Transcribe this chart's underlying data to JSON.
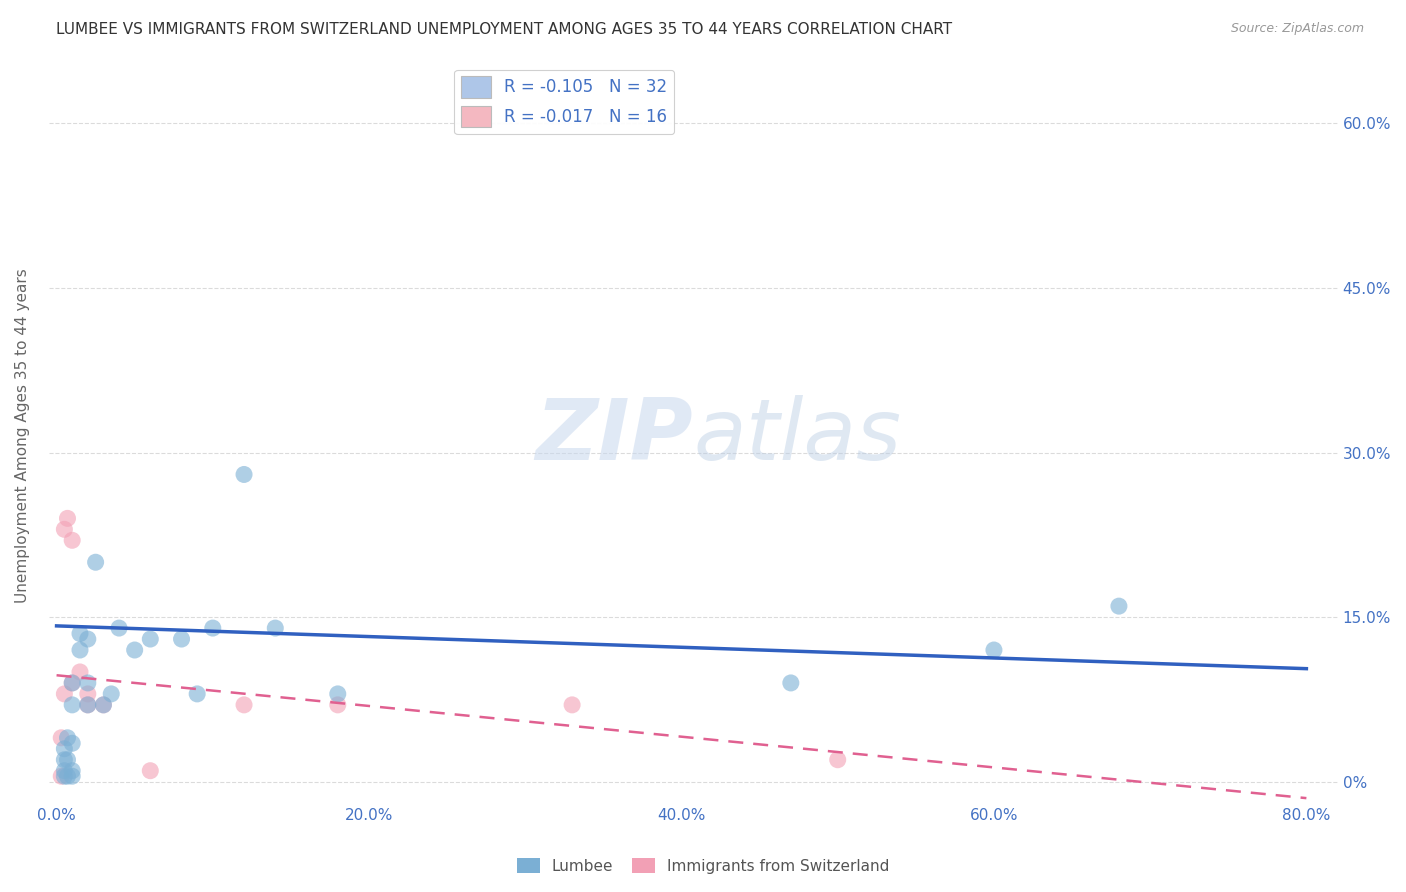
{
  "title": "LUMBEE VS IMMIGRANTS FROM SWITZERLAND UNEMPLOYMENT AMONG AGES 35 TO 44 YEARS CORRELATION CHART",
  "source": "Source: ZipAtlas.com",
  "ylabel": "Unemployment Among Ages 35 to 44 years",
  "x_tick_labels": [
    "0.0%",
    "20.0%",
    "40.0%",
    "60.0%",
    "80.0%"
  ],
  "x_tick_values": [
    0.0,
    0.2,
    0.4,
    0.6,
    0.8
  ],
  "y_tick_labels_right": [
    "0%",
    "15.0%",
    "30.0%",
    "45.0%",
    "60.0%"
  ],
  "y_tick_values": [
    0.0,
    0.15,
    0.3,
    0.45,
    0.6
  ],
  "xlim": [
    -0.005,
    0.82
  ],
  "ylim": [
    -0.02,
    0.65
  ],
  "legend1_color": "#aec6e8",
  "legend2_color": "#f4b8c1",
  "watermark_zip": "ZIP",
  "watermark_atlas": "atlas",
  "lumbee_color": "#7bafd4",
  "swiss_color": "#f2a0b5",
  "lumbee_trend_color": "#3060c0",
  "swiss_trend_color": "#e06090",
  "lumbee_x": [
    0.005,
    0.005,
    0.005,
    0.005,
    0.007,
    0.007,
    0.007,
    0.01,
    0.01,
    0.01,
    0.01,
    0.01,
    0.015,
    0.015,
    0.02,
    0.02,
    0.02,
    0.025,
    0.03,
    0.035,
    0.04,
    0.05,
    0.06,
    0.08,
    0.09,
    0.1,
    0.12,
    0.14,
    0.18,
    0.47,
    0.6,
    0.68
  ],
  "lumbee_y": [
    0.005,
    0.01,
    0.02,
    0.03,
    0.005,
    0.02,
    0.04,
    0.005,
    0.01,
    0.035,
    0.07,
    0.09,
    0.12,
    0.135,
    0.07,
    0.09,
    0.13,
    0.2,
    0.07,
    0.08,
    0.14,
    0.12,
    0.13,
    0.13,
    0.08,
    0.14,
    0.28,
    0.14,
    0.08,
    0.09,
    0.12,
    0.16
  ],
  "swiss_x": [
    0.003,
    0.003,
    0.005,
    0.005,
    0.007,
    0.01,
    0.01,
    0.015,
    0.02,
    0.02,
    0.03,
    0.06,
    0.12,
    0.18,
    0.33,
    0.5
  ],
  "swiss_y": [
    0.005,
    0.04,
    0.08,
    0.23,
    0.24,
    0.09,
    0.22,
    0.1,
    0.07,
    0.08,
    0.07,
    0.01,
    0.07,
    0.07,
    0.07,
    0.02
  ],
  "lumbee_R": -0.105,
  "swiss_R": -0.017,
  "lumbee_N": 32,
  "swiss_N": 16,
  "lumbee_trend_x0": 0.0,
  "lumbee_trend_y0": 0.142,
  "lumbee_trend_x1": 0.8,
  "lumbee_trend_y1": 0.103,
  "swiss_trend_x0": 0.0,
  "swiss_trend_y0": 0.097,
  "swiss_trend_x1": 0.8,
  "swiss_trend_y1": -0.015,
  "bg_color": "#ffffff",
  "grid_color": "#cccccc",
  "title_color": "#333333",
  "axis_label_color": "#666666",
  "tick_color": "#4472c4",
  "source_color": "#999999"
}
